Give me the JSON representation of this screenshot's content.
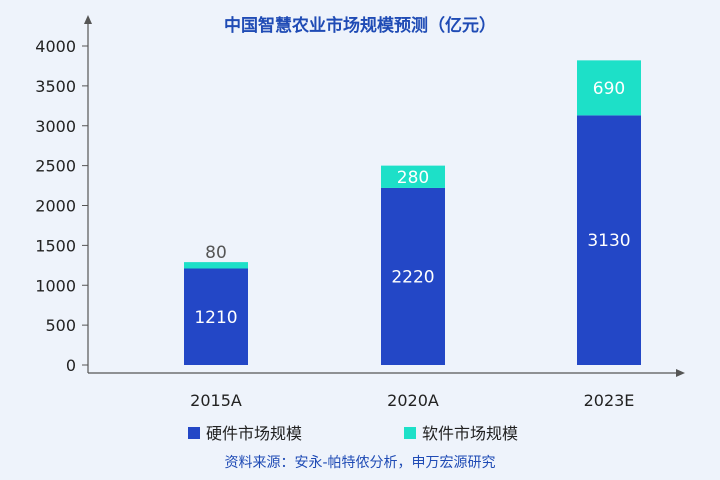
{
  "chart_data": {
    "type": "bar",
    "stacked": true,
    "title": "中国智慧农业市场规模预测（亿元）",
    "categories": [
      "2015A",
      "2020A",
      "2023E"
    ],
    "series": [
      {
        "name": "硬件市场规模",
        "values": [
          1210,
          2220,
          3130
        ],
        "color": "#2347c6"
      },
      {
        "name": "软件市场规模",
        "values": [
          80,
          280,
          690
        ],
        "color": "#1de0c8"
      }
    ],
    "ylim": [
      0,
      4000
    ],
    "yticks": [
      0,
      500,
      1000,
      1500,
      2000,
      2500,
      3000,
      3500,
      4000
    ],
    "grid": false,
    "legend": "bottom"
  },
  "source": "资料来源：安永-帕特侬分析，申万宏源研究"
}
